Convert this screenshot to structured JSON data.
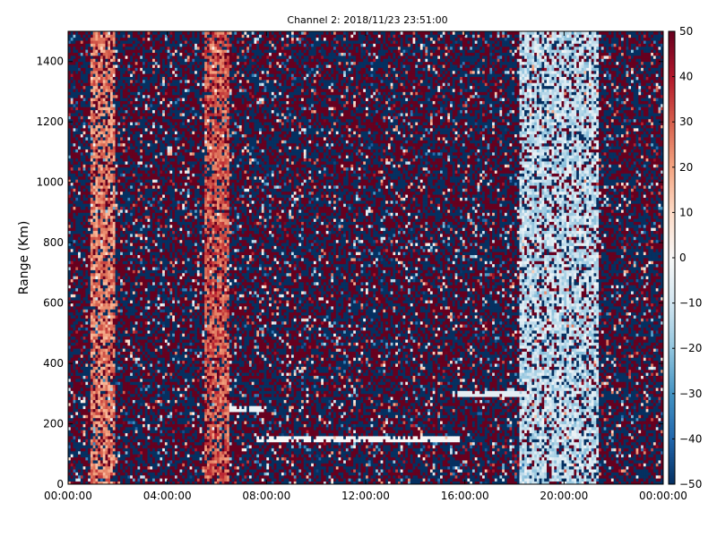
{
  "chart_data": {
    "type": "heatmap",
    "title": "Channel 2: 2018/11/23 23:51:00",
    "xlabel": "",
    "ylabel": "Range (Km)",
    "xlim": [
      0,
      24
    ],
    "ylim": [
      0,
      1500
    ],
    "x_ticks": [
      {
        "value": 0,
        "label": "00:00:00"
      },
      {
        "value": 4,
        "label": "04:00:00"
      },
      {
        "value": 8,
        "label": "08:00:00"
      },
      {
        "value": 12,
        "label": "12:00:00"
      },
      {
        "value": 16,
        "label": "16:00:00"
      },
      {
        "value": 20,
        "label": "20:00:00"
      },
      {
        "value": 24,
        "label": "00:00:00"
      }
    ],
    "y_ticks": [
      0,
      200,
      400,
      600,
      800,
      1000,
      1200,
      1400
    ],
    "colorbar": {
      "colormap": "RdBu_r",
      "range": [
        -50,
        50
      ],
      "ticks": [
        -50,
        -40,
        -30,
        -20,
        -10,
        0,
        10,
        20,
        30,
        40,
        50
      ]
    },
    "features": [
      {
        "kind": "band",
        "x_center": 1.4,
        "width": 1.0,
        "value": 25
      },
      {
        "kind": "band",
        "x_center": 6.0,
        "width": 0.9,
        "value": 30
      },
      {
        "kind": "band",
        "x_center": 19.8,
        "width": 3.2,
        "value": -12
      },
      {
        "kind": "streak",
        "x_start": 7.5,
        "x_end": 15.8,
        "y": 150,
        "value": 0
      },
      {
        "kind": "streak",
        "x_start": 6.5,
        "x_end": 8.0,
        "y": 250,
        "value": -3
      },
      {
        "kind": "streak",
        "x_start": 15.5,
        "x_end": 18.5,
        "y": 300,
        "value": -5
      }
    ]
  }
}
